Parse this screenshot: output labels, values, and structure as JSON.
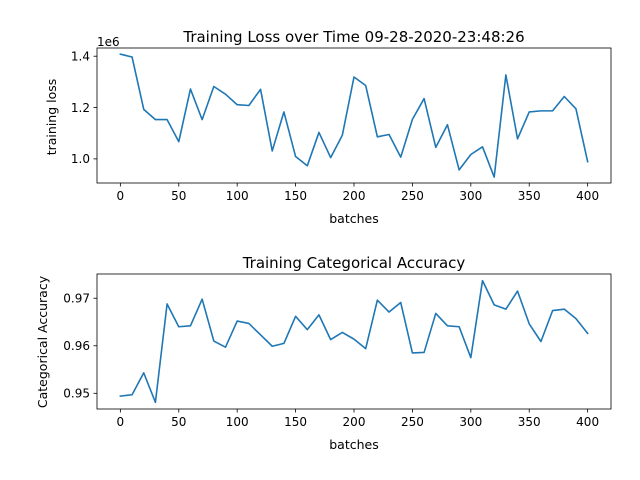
{
  "chart_data": [
    {
      "type": "line",
      "title": "Training Loss over Time 09-28-2020-23:48:26",
      "xlabel": "batches",
      "ylabel": "training loss",
      "offset_label": "1e6",
      "xlim": [
        -20,
        420
      ],
      "ylim": [
        906000,
        1432000
      ],
      "xticks": [
        0,
        50,
        100,
        150,
        200,
        250,
        300,
        350,
        400
      ],
      "yticks": [
        1000000,
        1200000,
        1400000
      ],
      "ytick_labels": [
        "1.0",
        "1.2",
        "1.4"
      ],
      "grid": false,
      "color": "#1f77b4",
      "series": [
        {
          "x": [
            0,
            10,
            20,
            30,
            40,
            50,
            60,
            70,
            80,
            90,
            100,
            110,
            120,
            130,
            140,
            150,
            160,
            170,
            180,
            190,
            200,
            210,
            220,
            230,
            240,
            250,
            260,
            270,
            280,
            290,
            300,
            310,
            320,
            330,
            340,
            350,
            360,
            370,
            380,
            390,
            400
          ],
          "y": [
            1408000,
            1397000,
            1193000,
            1153000,
            1153000,
            1067000,
            1272000,
            1153000,
            1282000,
            1252000,
            1211000,
            1208000,
            1271000,
            1031000,
            1183000,
            1009000,
            973000,
            1103000,
            1005000,
            1092000,
            1319000,
            1286000,
            1086000,
            1095000,
            1007000,
            1154000,
            1235000,
            1045000,
            1133000,
            957000,
            1017000,
            1047000,
            929000,
            1327000,
            1078000,
            1183000,
            1187000,
            1187000,
            1243000,
            1195000,
            989000
          ]
        }
      ]
    },
    {
      "type": "line",
      "title": "Training Categorical Accuracy",
      "xlabel": "batches",
      "ylabel": "Categorical Accuracy",
      "xlim": [
        -20,
        420
      ],
      "ylim": [
        0.9467,
        0.9751
      ],
      "xticks": [
        0,
        50,
        100,
        150,
        200,
        250,
        300,
        350,
        400
      ],
      "yticks": [
        0.95,
        0.96,
        0.97
      ],
      "ytick_labels": [
        "0.95",
        "0.96",
        "0.97"
      ],
      "grid": false,
      "color": "#1f77b4",
      "series": [
        {
          "x": [
            0,
            10,
            20,
            30,
            40,
            50,
            60,
            70,
            80,
            90,
            100,
            110,
            120,
            130,
            140,
            150,
            160,
            170,
            180,
            190,
            200,
            210,
            220,
            230,
            240,
            250,
            260,
            270,
            280,
            290,
            300,
            310,
            320,
            330,
            340,
            350,
            360,
            370,
            380,
            390,
            400
          ],
          "y": [
            0.9494,
            0.9497,
            0.9543,
            0.9481,
            0.9688,
            0.964,
            0.9642,
            0.9698,
            0.961,
            0.9597,
            0.9652,
            0.9647,
            0.9623,
            0.9599,
            0.9605,
            0.9662,
            0.9634,
            0.9665,
            0.9613,
            0.9628,
            0.9614,
            0.9594,
            0.9696,
            0.9671,
            0.9691,
            0.9585,
            0.9586,
            0.9668,
            0.9642,
            0.964,
            0.9575,
            0.9737,
            0.9686,
            0.9677,
            0.9715,
            0.9646,
            0.9609,
            0.9674,
            0.9677,
            0.9657,
            0.9626
          ]
        }
      ]
    }
  ]
}
